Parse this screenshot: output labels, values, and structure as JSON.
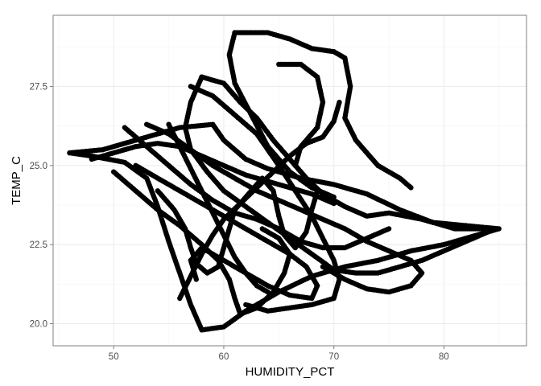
{
  "chart_data": {
    "type": "scatter",
    "title": "",
    "xlabel": "HUMIDITY_PCT",
    "ylabel": "TEMP_C",
    "xlim": [
      44.5,
      87.5
    ],
    "ylim": [
      19.3,
      29.75
    ],
    "x_ticks": [
      50,
      60,
      70,
      80
    ],
    "y_ticks": [
      20.0,
      22.5,
      25.0,
      27.5
    ],
    "x_tick_labels": [
      "50",
      "60",
      "70",
      "80"
    ],
    "y_tick_labels": [
      "20.0",
      "22.5",
      "25.0",
      "27.5"
    ],
    "grid": true,
    "legend": "none",
    "point_color": "#000000",
    "series": [
      {
        "paths": [
          [
            [
              46,
              25.4
            ],
            [
              49,
              25.5
            ],
            [
              52,
              25.8
            ],
            [
              56,
              26.2
            ],
            [
              59,
              26.3
            ],
            [
              60,
              25.8
            ],
            [
              62,
              25.2
            ],
            [
              64,
              24.9
            ],
            [
              67,
              24.6
            ],
            [
              70,
              24.4
            ],
            [
              73,
              24.1
            ],
            [
              76,
              23.6
            ],
            [
              79,
              23.2
            ],
            [
              82,
              23.1
            ],
            [
              85,
              23.0
            ],
            [
              83,
              22.8
            ],
            [
              80,
              22.5
            ],
            [
              77,
              22.3
            ],
            [
              74,
              22.0
            ],
            [
              71,
              21.8
            ],
            [
              68,
              21.5
            ],
            [
              65,
              21.0
            ],
            [
              62,
              20.4
            ],
            [
              60,
              19.9
            ],
            [
              58,
              19.8
            ],
            [
              57,
              20.6
            ],
            [
              56,
              21.6
            ],
            [
              55,
              22.6
            ],
            [
              54,
              23.7
            ],
            [
              53,
              24.6
            ],
            [
              51,
              25.1
            ],
            [
              48,
              25.3
            ],
            [
              46,
              25.4
            ]
          ],
          [
            [
              61,
              29.2
            ],
            [
              64,
              29.2
            ],
            [
              66,
              29.0
            ],
            [
              68,
              28.7
            ],
            [
              70,
              28.6
            ],
            [
              71,
              28.4
            ],
            [
              71.5,
              27.5
            ],
            [
              71,
              26.5
            ],
            [
              72,
              25.8
            ],
            [
              74,
              25.0
            ],
            [
              76,
              24.6
            ],
            [
              77,
              24.3
            ]
          ],
          [
            [
              61,
              29.2
            ],
            [
              60.5,
              28.5
            ],
            [
              61,
              27.6
            ],
            [
              62.5,
              26.6
            ],
            [
              64,
              25.6
            ],
            [
              66,
              24.8
            ],
            [
              68,
              24.3
            ],
            [
              70,
              24.0
            ]
          ],
          [
            [
              58,
              27.8
            ],
            [
              60,
              27.6
            ],
            [
              61.5,
              27.0
            ],
            [
              63,
              26.5
            ],
            [
              64.5,
              25.8
            ],
            [
              66,
              25.2
            ],
            [
              67.5,
              24.6
            ],
            [
              69,
              24.1
            ],
            [
              71,
              23.7
            ],
            [
              73,
              23.4
            ],
            [
              75,
              23.5
            ],
            [
              78,
              23.3
            ],
            [
              81,
              23.0
            ],
            [
              84,
              23.0
            ]
          ],
          [
            [
              57,
              27.5
            ],
            [
              59,
              27.2
            ],
            [
              61,
              26.6
            ],
            [
              63,
              26.0
            ],
            [
              65,
              25.0
            ],
            [
              66.5,
              24.2
            ],
            [
              68,
              23.4
            ],
            [
              69,
              22.7
            ],
            [
              70,
              22.0
            ],
            [
              70.5,
              21.4
            ],
            [
              70,
              20.8
            ],
            [
              68,
              20.6
            ],
            [
              66,
              20.5
            ],
            [
              64,
              20.4
            ],
            [
              62,
              20.6
            ]
          ],
          [
            [
              58,
              27.8
            ],
            [
              57,
              27.0
            ],
            [
              56.5,
              26.2
            ],
            [
              57,
              25.5
            ],
            [
              58.5,
              24.8
            ],
            [
              60,
              24.2
            ],
            [
              62,
              23.7
            ],
            [
              64,
              23.2
            ],
            [
              66,
              22.7
            ],
            [
              68,
              22.2
            ],
            [
              70,
              21.7
            ],
            [
              72,
              21.6
            ],
            [
              74,
              21.6
            ],
            [
              76,
              21.8
            ],
            [
              78,
              22.0
            ],
            [
              80,
              22.3
            ],
            [
              82,
              22.6
            ],
            [
              84,
              22.9
            ]
          ],
          [
            [
              65,
              28.2
            ],
            [
              67,
              28.2
            ],
            [
              68.5,
              27.8
            ],
            [
              69,
              27.0
            ],
            [
              68.5,
              26.2
            ],
            [
              67,
              25.6
            ],
            [
              66.5,
              25.0
            ]
          ],
          [
            [
              53,
              26.3
            ],
            [
              55,
              26.0
            ],
            [
              57,
              25.5
            ],
            [
              59,
              25.0
            ],
            [
              61,
              24.6
            ],
            [
              63,
              24.2
            ],
            [
              65,
              23.9
            ],
            [
              67,
              23.6
            ],
            [
              69,
              23.3
            ],
            [
              71,
              23.0
            ],
            [
              73,
              22.6
            ],
            [
              75,
              22.3
            ],
            [
              77,
              22.0
            ],
            [
              78,
              21.6
            ],
            [
              77,
              21.2
            ],
            [
              75,
              21.0
            ],
            [
              73,
              21.1
            ],
            [
              71,
              21.4
            ],
            [
              69,
              21.8
            ]
          ],
          [
            [
              52,
              25.0
            ],
            [
              54,
              24.6
            ],
            [
              56,
              24.2
            ],
            [
              58,
              23.8
            ],
            [
              60,
              23.4
            ],
            [
              62,
              23.0
            ],
            [
              64,
              22.6
            ],
            [
              66,
              22.2
            ],
            [
              67.5,
              21.8
            ],
            [
              68.5,
              21.2
            ],
            [
              68,
              20.8
            ],
            [
              66,
              20.9
            ],
            [
              64,
              21.2
            ],
            [
              62,
              21.6
            ],
            [
              60,
              22.0
            ],
            [
              58,
              22.4
            ],
            [
              57,
              22.0
            ],
            [
              57.5,
              21.4
            ]
          ],
          [
            [
              50,
              24.8
            ],
            [
              52,
              24.2
            ],
            [
              54,
              23.6
            ],
            [
              56,
              23.1
            ],
            [
              58,
              22.5
            ],
            [
              59.5,
              22.0
            ],
            [
              60.5,
              21.4
            ],
            [
              61,
              20.8
            ],
            [
              61.5,
              20.3
            ],
            [
              63,
              20.5
            ],
            [
              64.5,
              21.0
            ],
            [
              65.5,
              21.6
            ],
            [
              66,
              22.2
            ],
            [
              65,
              22.7
            ],
            [
              63.5,
              23.0
            ]
          ],
          [
            [
              56,
              20.8
            ],
            [
              57,
              21.5
            ],
            [
              58,
              22.2
            ],
            [
              59,
              22.8
            ],
            [
              60,
              23.3
            ],
            [
              61.5,
              23.8
            ],
            [
              63,
              24.3
            ],
            [
              64.5,
              24.8
            ],
            [
              66,
              25.3
            ],
            [
              67.5,
              25.7
            ],
            [
              69,
              25.9
            ],
            [
              70,
              26.4
            ],
            [
              70.5,
              27.0
            ]
          ],
          [
            [
              51,
              26.2
            ],
            [
              53,
              25.6
            ],
            [
              55,
              25.0
            ],
            [
              57,
              24.4
            ],
            [
              59,
              23.9
            ],
            [
              61,
              23.5
            ],
            [
              63,
              23.3
            ],
            [
              65,
              23.0
            ],
            [
              67,
              22.6
            ],
            [
              69,
              22.4
            ],
            [
              71,
              22.4
            ],
            [
              73,
              22.7
            ],
            [
              75,
              23.0
            ]
          ],
          [
            [
              55,
              26.3
            ],
            [
              56,
              25.6
            ],
            [
              57,
              24.9
            ],
            [
              58,
              24.2
            ],
            [
              59,
              23.5
            ],
            [
              60,
              22.8
            ],
            [
              61,
              22.1
            ],
            [
              62,
              21.6
            ],
            [
              63,
              21.2
            ],
            [
              64,
              21.0
            ]
          ],
          [
            [
              54,
              24.2
            ],
            [
              55.5,
              23.6
            ],
            [
              56.5,
              23.0
            ],
            [
              57,
              22.4
            ],
            [
              57.5,
              21.9
            ],
            [
              58.5,
              21.6
            ],
            [
              59.5,
              21.8
            ],
            [
              60,
              22.4
            ],
            [
              60.5,
              23.0
            ],
            [
              61,
              23.6
            ],
            [
              62,
              24.0
            ],
            [
              63.5,
              24.6
            ],
            [
              64.5,
              24.2
            ],
            [
              65,
              23.4
            ],
            [
              65.5,
              22.8
            ],
            [
              66.5,
              22.4
            ],
            [
              67.5,
              22.9
            ],
            [
              68,
              23.6
            ],
            [
              68.5,
              24.2
            ]
          ],
          [
            [
              48,
              25.2
            ],
            [
              50,
              25.4
            ],
            [
              52,
              25.6
            ],
            [
              54,
              25.7
            ],
            [
              56,
              25.6
            ],
            [
              58,
              25.3
            ],
            [
              60,
              25.0
            ],
            [
              62,
              24.7
            ],
            [
              64,
              24.5
            ],
            [
              66,
              24.3
            ],
            [
              68,
              24.1
            ],
            [
              70,
              23.8
            ]
          ]
        ]
      }
    ]
  }
}
